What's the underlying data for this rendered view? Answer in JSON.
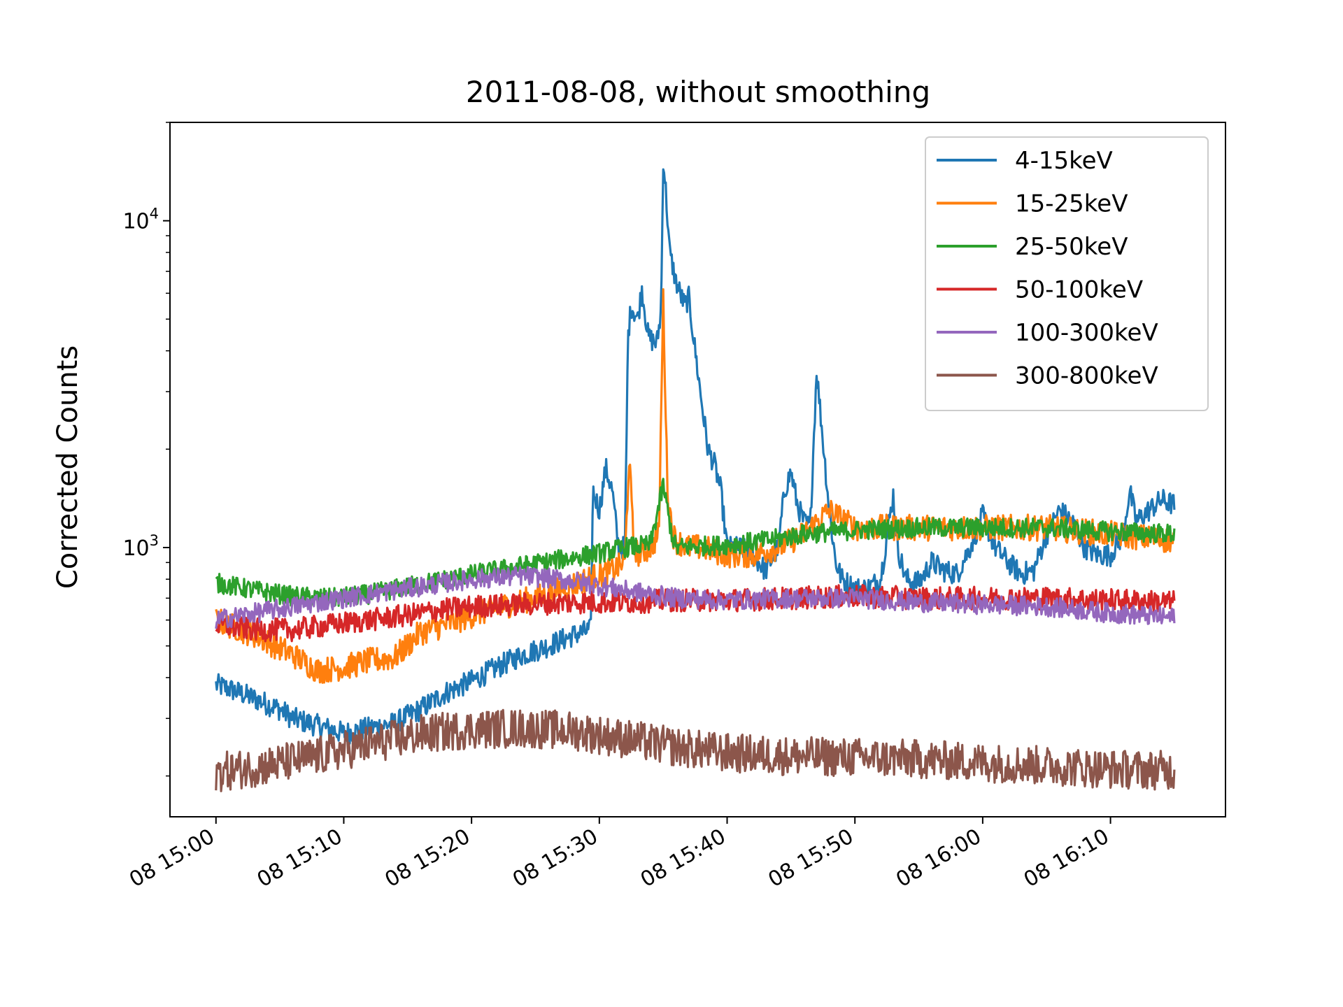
{
  "chart_data": {
    "type": "line",
    "title": "2011-08-08, without smoothing",
    "xlabel": "",
    "ylabel": "Corrected Counts",
    "yscale": "log",
    "ylim": [
      150,
      20000
    ],
    "xlim": [
      "2011-08-08 14:56:24",
      "2011-08-08 16:19:00"
    ],
    "x_ticks": [
      "2011-08-08 15:00",
      "2011-08-08 15:10",
      "2011-08-08 15:20",
      "2011-08-08 15:30",
      "2011-08-08 15:40",
      "2011-08-08 15:50",
      "2011-08-08 16:00",
      "2011-08-08 16:10"
    ],
    "x_tick_labels": [
      "08 15:00",
      "08 15:10",
      "08 15:20",
      "08 15:30",
      "08 15:40",
      "08 15:50",
      "08 16:00",
      "08 16:10"
    ],
    "y_ticks": [
      1000,
      10000
    ],
    "y_tick_labels": [
      {
        "base": "10",
        "exp": "3"
      },
      {
        "base": "10",
        "exp": "4"
      }
    ],
    "grid": false,
    "legend_position": "top-right",
    "series": [
      {
        "name": "4-15keV",
        "color": "#1f77b4",
        "x": [
          "2011-08-08 15:00",
          "2011-08-08 15:01",
          "2011-08-08 15:03",
          "2011-08-08 15:05",
          "2011-08-08 15:06",
          "2011-08-08 15:08",
          "2011-08-08 15:10",
          "2011-08-08 15:12",
          "2011-08-08 15:14",
          "2011-08-08 15:16",
          "2011-08-08 15:18",
          "2011-08-08 15:20",
          "2011-08-08 15:22",
          "2011-08-08 15:24",
          "2011-08-08 15:26",
          "2011-08-08 15:28",
          "2011-08-08 15:29:20",
          "2011-08-08 15:29:30",
          "2011-08-08 15:30",
          "2011-08-08 15:30:30",
          "2011-08-08 15:31",
          "2011-08-08 15:31:30",
          "2011-08-08 15:32",
          "2011-08-08 15:32:15",
          "2011-08-08 15:32:30",
          "2011-08-08 15:33",
          "2011-08-08 15:33:20",
          "2011-08-08 15:33:50",
          "2011-08-08 15:34:30",
          "2011-08-08 15:34:50",
          "2011-08-08 15:35",
          "2011-08-08 15:35:10",
          "2011-08-08 15:35:30",
          "2011-08-08 15:36",
          "2011-08-08 15:36:40",
          "2011-08-08 15:37",
          "2011-08-08 15:37:30",
          "2011-08-08 15:38",
          "2011-08-08 15:38:30",
          "2011-08-08 15:39",
          "2011-08-08 15:39:30",
          "2011-08-08 15:40",
          "2011-08-08 15:41",
          "2011-08-08 15:42",
          "2011-08-08 15:43",
          "2011-08-08 15:44",
          "2011-08-08 15:44:30",
          "2011-08-08 15:45",
          "2011-08-08 15:45:30",
          "2011-08-08 15:46",
          "2011-08-08 15:46:30",
          "2011-08-08 15:47",
          "2011-08-08 15:47:40",
          "2011-08-08 15:48",
          "2011-08-08 15:48:30",
          "2011-08-08 15:49",
          "2011-08-08 15:50",
          "2011-08-08 15:51",
          "2011-08-08 15:52",
          "2011-08-08 15:53",
          "2011-08-08 15:53:20",
          "2011-08-08 15:54",
          "2011-08-08 15:55",
          "2011-08-08 15:56",
          "2011-08-08 15:57",
          "2011-08-08 15:58",
          "2011-08-08 15:59",
          "2011-08-08 16:00",
          "2011-08-08 16:01",
          "2011-08-08 16:02",
          "2011-08-08 16:03",
          "2011-08-08 16:04",
          "2011-08-08 16:05",
          "2011-08-08 16:06",
          "2011-08-08 16:07",
          "2011-08-08 16:08",
          "2011-08-08 16:09",
          "2011-08-08 16:10",
          "2011-08-08 16:11",
          "2011-08-08 16:11:30",
          "2011-08-08 16:12",
          "2011-08-08 16:13",
          "2011-08-08 16:14",
          "2011-08-08 16:15"
        ],
        "y": [
          380,
          370,
          345,
          320,
          300,
          285,
          270,
          280,
          290,
          320,
          360,
          390,
          430,
          470,
          500,
          540,
          560,
          1500,
          1300,
          1750,
          1500,
          1000,
          1000,
          4500,
          5500,
          5000,
          6200,
          4400,
          4200,
          5300,
          15500,
          13000,
          8000,
          6500,
          5500,
          5800,
          4000,
          2800,
          2000,
          1800,
          1500,
          1000,
          1000,
          950,
          850,
          1000,
          1500,
          1700,
          1350,
          1200,
          1150,
          3500,
          1800,
          1300,
          900,
          800,
          750,
          750,
          800,
          1450,
          1000,
          800,
          780,
          900,
          850,
          830,
          1000,
          1250,
          1000,
          900,
          830,
          850,
          1100,
          1300,
          1200,
          1000,
          950,
          950,
          1100,
          1500,
          1200,
          1300,
          1400,
          1350
        ]
      },
      {
        "name": "15-25keV",
        "color": "#ff7f0e",
        "x": [
          "2011-08-08 15:00",
          "2011-08-08 15:03",
          "2011-08-08 15:06",
          "2011-08-08 15:08",
          "2011-08-08 15:10",
          "2011-08-08 15:12",
          "2011-08-08 15:14",
          "2011-08-08 15:16",
          "2011-08-08 15:18",
          "2011-08-08 15:20",
          "2011-08-08 15:23",
          "2011-08-08 15:26",
          "2011-08-08 15:29",
          "2011-08-08 15:31",
          "2011-08-08 15:32",
          "2011-08-08 15:32:20",
          "2011-08-08 15:32:40",
          "2011-08-08 15:33",
          "2011-08-08 15:34",
          "2011-08-08 15:34:40",
          "2011-08-08 15:35",
          "2011-08-08 15:35:20",
          "2011-08-08 15:35:45",
          "2011-08-08 15:36",
          "2011-08-08 15:37",
          "2011-08-08 15:38",
          "2011-08-08 15:40",
          "2011-08-08 15:42",
          "2011-08-08 15:44",
          "2011-08-08 15:46",
          "2011-08-08 15:48",
          "2011-08-08 15:50",
          "2011-08-08 15:55",
          "2011-08-08 16:00",
          "2011-08-08 16:05",
          "2011-08-08 16:10",
          "2011-08-08 16:15"
        ],
        "y": [
          600,
          540,
          470,
          420,
          430,
          450,
          460,
          550,
          580,
          620,
          670,
          720,
          800,
          850,
          900,
          1900,
          1050,
          950,
          1000,
          1100,
          5800,
          1500,
          1100,
          1050,
          1000,
          1000,
          950,
          950,
          1000,
          1100,
          1300,
          1150,
          1150,
          1150,
          1150,
          1100,
          1050
        ]
      },
      {
        "name": "25-50keV",
        "color": "#2ca02c",
        "x": [
          "2011-08-08 15:00",
          "2011-08-08 15:03",
          "2011-08-08 15:06",
          "2011-08-08 15:09",
          "2011-08-08 15:12",
          "2011-08-08 15:15",
          "2011-08-08 15:18",
          "2011-08-08 15:21",
          "2011-08-08 15:24",
          "2011-08-08 15:27",
          "2011-08-08 15:30",
          "2011-08-08 15:32",
          "2011-08-08 15:34",
          "2011-08-08 15:35",
          "2011-08-08 15:35:40",
          "2011-08-08 15:36",
          "2011-08-08 15:38",
          "2011-08-08 15:40",
          "2011-08-08 15:43",
          "2011-08-08 15:46",
          "2011-08-08 15:50",
          "2011-08-08 15:55",
          "2011-08-08 16:00",
          "2011-08-08 16:05",
          "2011-08-08 16:10",
          "2011-08-08 16:15"
        ],
        "y": [
          780,
          740,
          710,
          700,
          720,
          760,
          800,
          840,
          880,
          920,
          960,
          1000,
          1020,
          1550,
          1100,
          1000,
          1010,
          1020,
          1050,
          1100,
          1130,
          1150,
          1150,
          1150,
          1120,
          1100
        ]
      },
      {
        "name": "50-100keV",
        "color": "#d62728",
        "x": [
          "2011-08-08 15:00",
          "2011-08-08 15:03",
          "2011-08-08 15:06",
          "2011-08-08 15:09",
          "2011-08-08 15:12",
          "2011-08-08 15:15",
          "2011-08-08 15:17",
          "2011-08-08 15:20",
          "2011-08-08 15:24",
          "2011-08-08 15:28",
          "2011-08-08 15:32",
          "2011-08-08 15:36",
          "2011-08-08 15:40",
          "2011-08-08 15:45",
          "2011-08-08 15:50",
          "2011-08-08 15:55",
          "2011-08-08 16:00",
          "2011-08-08 16:05",
          "2011-08-08 16:10",
          "2011-08-08 16:15"
        ],
        "y": [
          580,
          560,
          560,
          580,
          600,
          620,
          640,
          660,
          670,
          680,
          680,
          690,
          690,
          700,
          710,
          700,
          700,
          700,
          690,
          680
        ]
      },
      {
        "name": "100-300keV",
        "color": "#9467bd",
        "x": [
          "2011-08-08 15:00",
          "2011-08-08 15:04",
          "2011-08-08 15:08",
          "2011-08-08 15:12",
          "2011-08-08 15:16",
          "2011-08-08 15:20",
          "2011-08-08 15:24",
          "2011-08-08 15:28",
          "2011-08-08 15:32",
          "2011-08-08 15:36",
          "2011-08-08 15:40",
          "2011-08-08 15:45",
          "2011-08-08 15:50",
          "2011-08-08 15:55",
          "2011-08-08 16:00",
          "2011-08-08 16:05",
          "2011-08-08 16:10",
          "2011-08-08 16:15"
        ],
        "y": [
          600,
          640,
          680,
          720,
          760,
          800,
          820,
          790,
          740,
          700,
          690,
          700,
          700,
          680,
          670,
          660,
          630,
          610
        ]
      },
      {
        "name": "300-800keV",
        "color": "#8c564b",
        "x": [
          "2011-08-08 15:00",
          "2011-08-08 15:04",
          "2011-08-08 15:08",
          "2011-08-08 15:12",
          "2011-08-08 15:16",
          "2011-08-08 15:20",
          "2011-08-08 15:24",
          "2011-08-08 15:28",
          "2011-08-08 15:32",
          "2011-08-08 15:36",
          "2011-08-08 15:40",
          "2011-08-08 15:45",
          "2011-08-08 15:50",
          "2011-08-08 15:55",
          "2011-08-08 16:00",
          "2011-08-08 16:05",
          "2011-08-08 16:10",
          "2011-08-08 16:15"
        ],
        "y": [
          205,
          215,
          230,
          250,
          268,
          278,
          280,
          275,
          260,
          245,
          235,
          230,
          228,
          225,
          220,
          215,
          210,
          208
        ]
      }
    ]
  }
}
